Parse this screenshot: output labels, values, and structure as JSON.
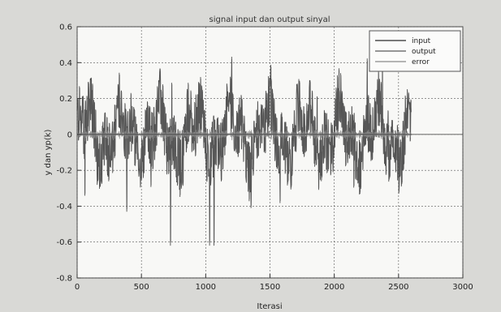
{
  "chart_data": {
    "type": "line",
    "title": "signal input dan output sinyal",
    "xlabel": "Iterasi",
    "ylabel": "y dan yp(k)",
    "xlim": [
      0,
      3000
    ],
    "ylim": [
      -0.8,
      0.6
    ],
    "xticks": [
      "0",
      "500",
      "1000",
      "1500",
      "2000",
      "2500",
      "3000"
    ],
    "yticks": [
      "0.6",
      "0.4",
      "0.2",
      "0",
      "-0.2",
      "-0.4",
      "-0.6",
      "-0.8"
    ],
    "grid": true,
    "legend_position": "top-right",
    "series": [
      {
        "name": "input",
        "color": "#2a2a2a",
        "amplitude": 0.3
      },
      {
        "name": "output",
        "color": "#5a5a5a",
        "amplitude": 0.28
      },
      {
        "name": "error",
        "color": "#8a8a8a",
        "amplitude": 0.05
      }
    ],
    "n_points": 2600,
    "x_end": 2600
  }
}
